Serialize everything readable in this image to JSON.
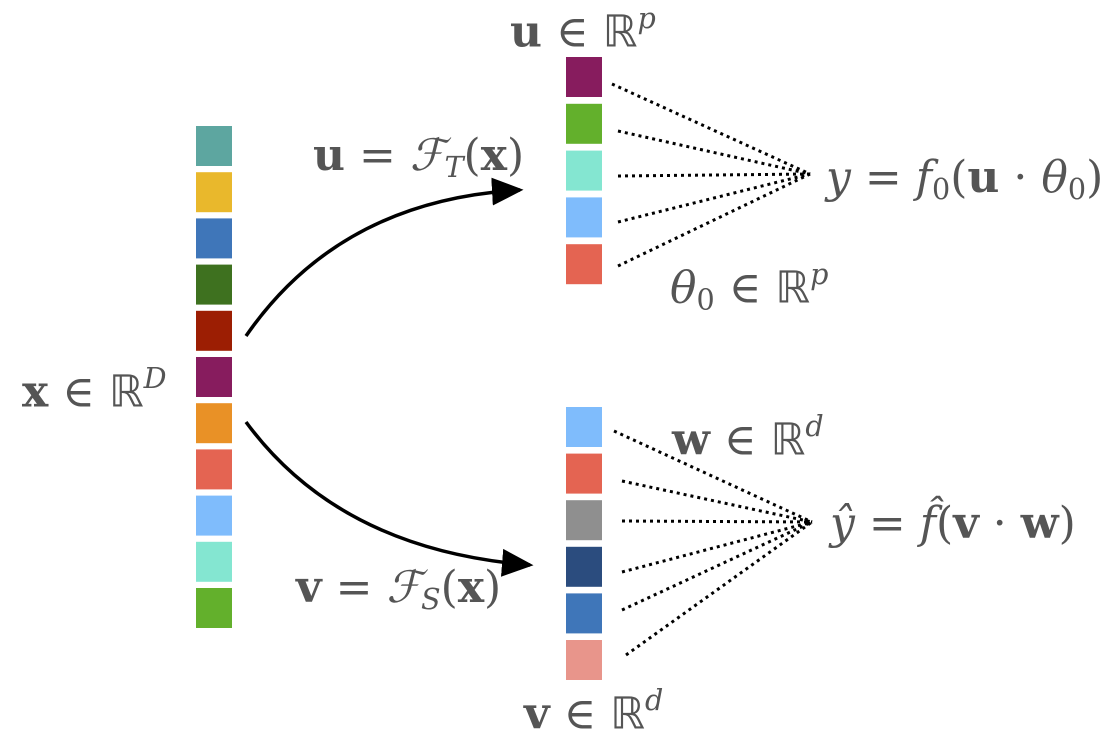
{
  "vectors": {
    "x": {
      "colors": [
        "#5da6a0",
        "#e9b82c",
        "#3f76b9",
        "#3e711f",
        "#9c1e03",
        "#871c5e",
        "#e99126",
        "#e46452",
        "#7fbcfc",
        "#84e6d1",
        "#63b02c"
      ]
    },
    "u": {
      "colors": [
        "#871c5e",
        "#63b02c",
        "#84e6d1",
        "#7fbcfc",
        "#e46452"
      ]
    },
    "v": {
      "colors": [
        "#7fbcfc",
        "#e46452",
        "#8f8f8f",
        "#2b4c7e",
        "#3f76b9",
        "#e8958b"
      ]
    }
  },
  "labels": {
    "x_space": {
      "sym": "x",
      "in": "∈",
      "set": "ℝ",
      "dim": "D"
    },
    "u_space": {
      "sym": "u",
      "in": "∈",
      "set": "ℝ",
      "dim": "p"
    },
    "v_space": {
      "sym": "v",
      "in": "∈",
      "set": "ℝ",
      "dim": "d"
    },
    "w_space": {
      "sym": "w",
      "in": "∈",
      "set": "ℝ",
      "dim": "d"
    },
    "theta_space": {
      "sym": "θ",
      "sub": "0",
      "in": "∈",
      "set": "ℝ",
      "dim": "p"
    },
    "teacher_map": {
      "lhs": "u",
      "eq": "=",
      "op": "ℱ",
      "sub": "T",
      "arg_open": "(",
      "arg": "x",
      "arg_close": ")"
    },
    "student_map": {
      "lhs": "v",
      "eq": "=",
      "op": "ℱ",
      "sub": "S",
      "arg_open": "(",
      "arg": "x",
      "arg_close": ")"
    },
    "teacher_out": {
      "lhs": "y",
      "eq": "=",
      "fn": "f",
      "fn_sub": "0",
      "open": "(",
      "a": "u",
      "dot": "·",
      "b": "θ",
      "b_sub": "0",
      "close": ")"
    },
    "student_out": {
      "lhs": "ŷ",
      "eq": "=",
      "fn": "f̂",
      "open": "(",
      "a": "v",
      "dot": "·",
      "b": "w",
      "close": ")"
    }
  }
}
